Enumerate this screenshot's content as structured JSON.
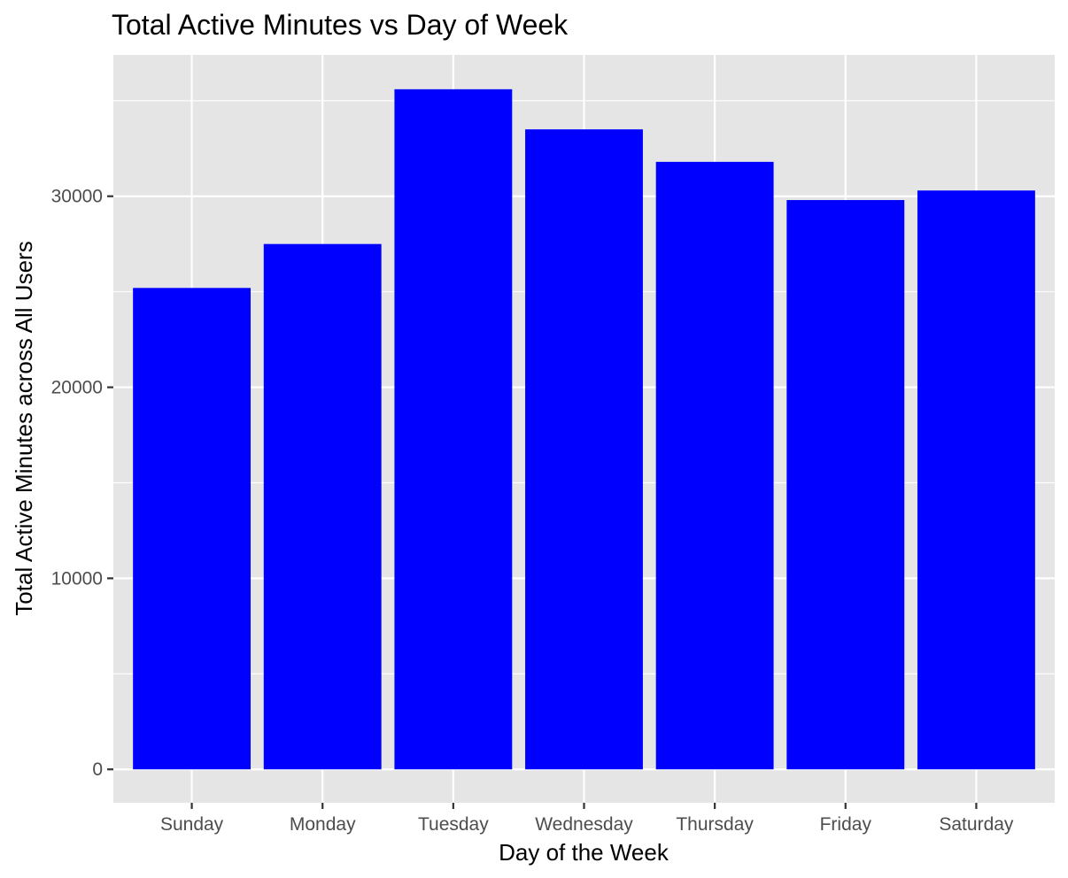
{
  "chart_data": {
    "type": "bar",
    "title": "Total Active Minutes vs Day of Week",
    "xlabel": "Day of the Week",
    "ylabel": "Total Active Minutes across All Users",
    "categories": [
      "Sunday",
      "Monday",
      "Tuesday",
      "Wednesday",
      "Thursday",
      "Friday",
      "Saturday"
    ],
    "values": [
      25200,
      27500,
      35600,
      33500,
      31800,
      29800,
      30300
    ],
    "yticks": [
      0,
      10000,
      20000,
      30000
    ],
    "ylim": [
      -1750,
      37400
    ],
    "grid": true,
    "bar_color": "#0000ff",
    "panel_color": "#e5e5e5",
    "grid_color": "#ffffff"
  }
}
